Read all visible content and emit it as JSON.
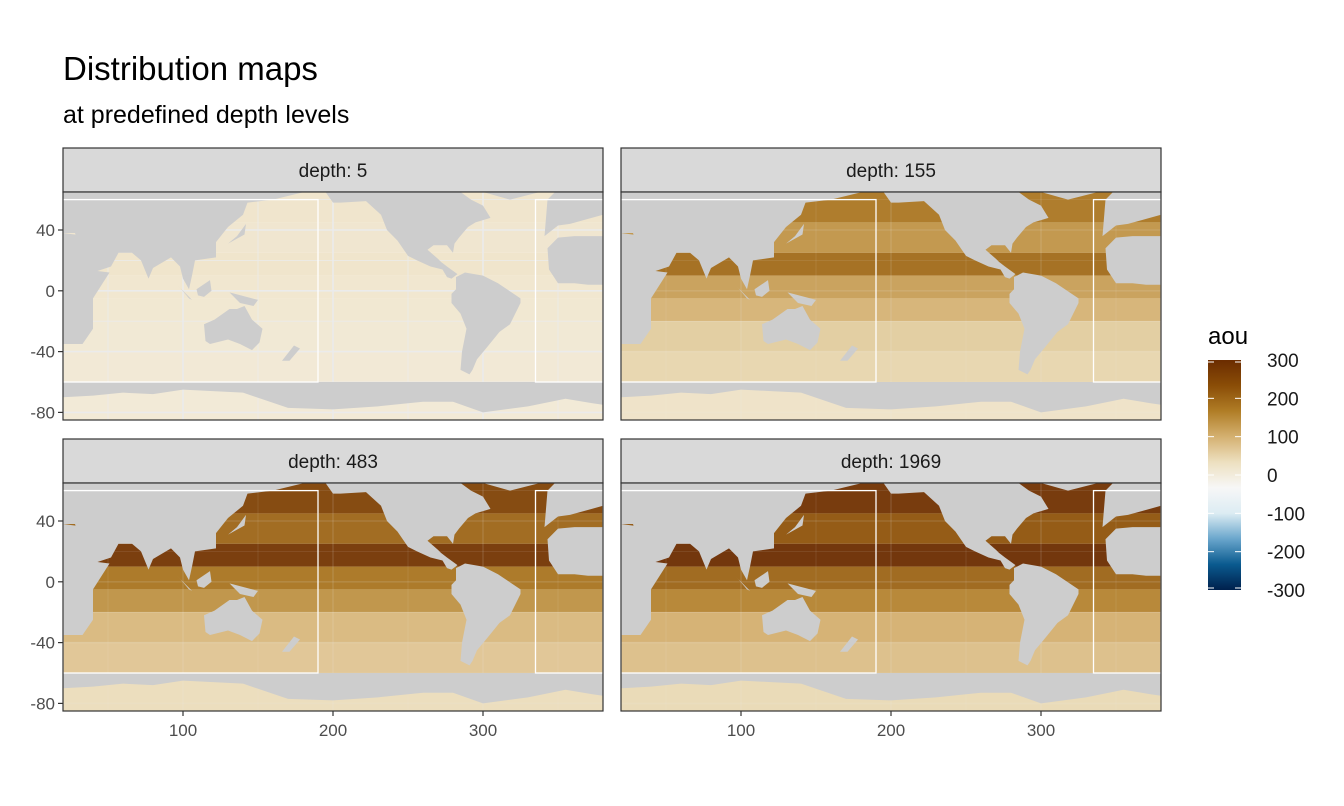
{
  "title": "Distribution maps",
  "subtitle": "at predefined depth levels",
  "colors": {
    "land": "#cdcdcd",
    "strip": "#d9d9d9",
    "frame": "#333333",
    "grid": "#ebebeb",
    "box": "#ffffff"
  },
  "chart_data": {
    "type": "heatmap",
    "facet_variable": "depth",
    "facets": [
      {
        "label": "depth: 5",
        "depth": 5,
        "intensity": 0.05
      },
      {
        "label": "depth: 155",
        "depth": 155,
        "intensity": 0.55
      },
      {
        "label": "depth: 483",
        "depth": 483,
        "intensity": 0.8
      },
      {
        "label": "depth: 1969",
        "depth": 1969,
        "intensity": 0.9
      }
    ],
    "xlim": [
      20,
      380
    ],
    "ylim": [
      -85,
      65
    ],
    "x_ticks": [
      100,
      200,
      300
    ],
    "y_ticks": [
      40,
      0,
      -40,
      -80
    ],
    "xlabel": "",
    "ylabel": "",
    "grid": true,
    "region_boxes": [
      {
        "xmin": 20,
        "xmax": 190,
        "ymin": -60,
        "ymax": 60
      },
      {
        "xmin": 335,
        "xmax": 380,
        "ymin": -60,
        "ymax": 60
      }
    ],
    "legend": {
      "title": "aou",
      "limits": [
        -300,
        300
      ],
      "ticks": [
        300,
        200,
        100,
        0,
        -100,
        -200,
        -300
      ],
      "position": "right",
      "colors": [
        "#00204c",
        "#0a5a8f",
        "#6aa6cc",
        "#dcecf3",
        "#f7f7f7",
        "#ede0c0",
        "#d4b070",
        "#b07d26",
        "#8a4d07",
        "#6b2c00"
      ]
    }
  }
}
